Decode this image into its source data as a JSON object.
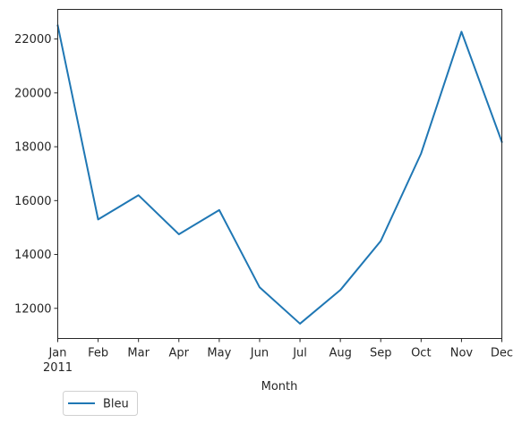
{
  "chart_data": {
    "type": "line",
    "x": [
      "Jan",
      "Feb",
      "Mar",
      "Apr",
      "May",
      "Jun",
      "Jul",
      "Aug",
      "Sep",
      "Oct",
      "Nov",
      "Dec"
    ],
    "x_tick_labels": [
      "Jan",
      "Feb",
      "Mar",
      "Apr",
      "May",
      "Jun",
      "Jul",
      "Aug",
      "Sep",
      "Oct",
      "Nov",
      "Dec"
    ],
    "x_year_label": "2011",
    "series": [
      {
        "name": "Bleu",
        "color": "#1f77b4",
        "values": [
          22500,
          15300,
          16200,
          14750,
          15650,
          12780,
          11430,
          12680,
          14500,
          17750,
          22270,
          18180
        ]
      }
    ],
    "title": "",
    "xlabel": "Month",
    "ylabel": "",
    "ylim": [
      10880,
      23100
    ],
    "yticks": [
      12000,
      14000,
      16000,
      18000,
      20000,
      22000
    ],
    "grid": false,
    "legend": {
      "placement": "bottom-left, below axes",
      "entries": [
        "Bleu"
      ]
    }
  }
}
